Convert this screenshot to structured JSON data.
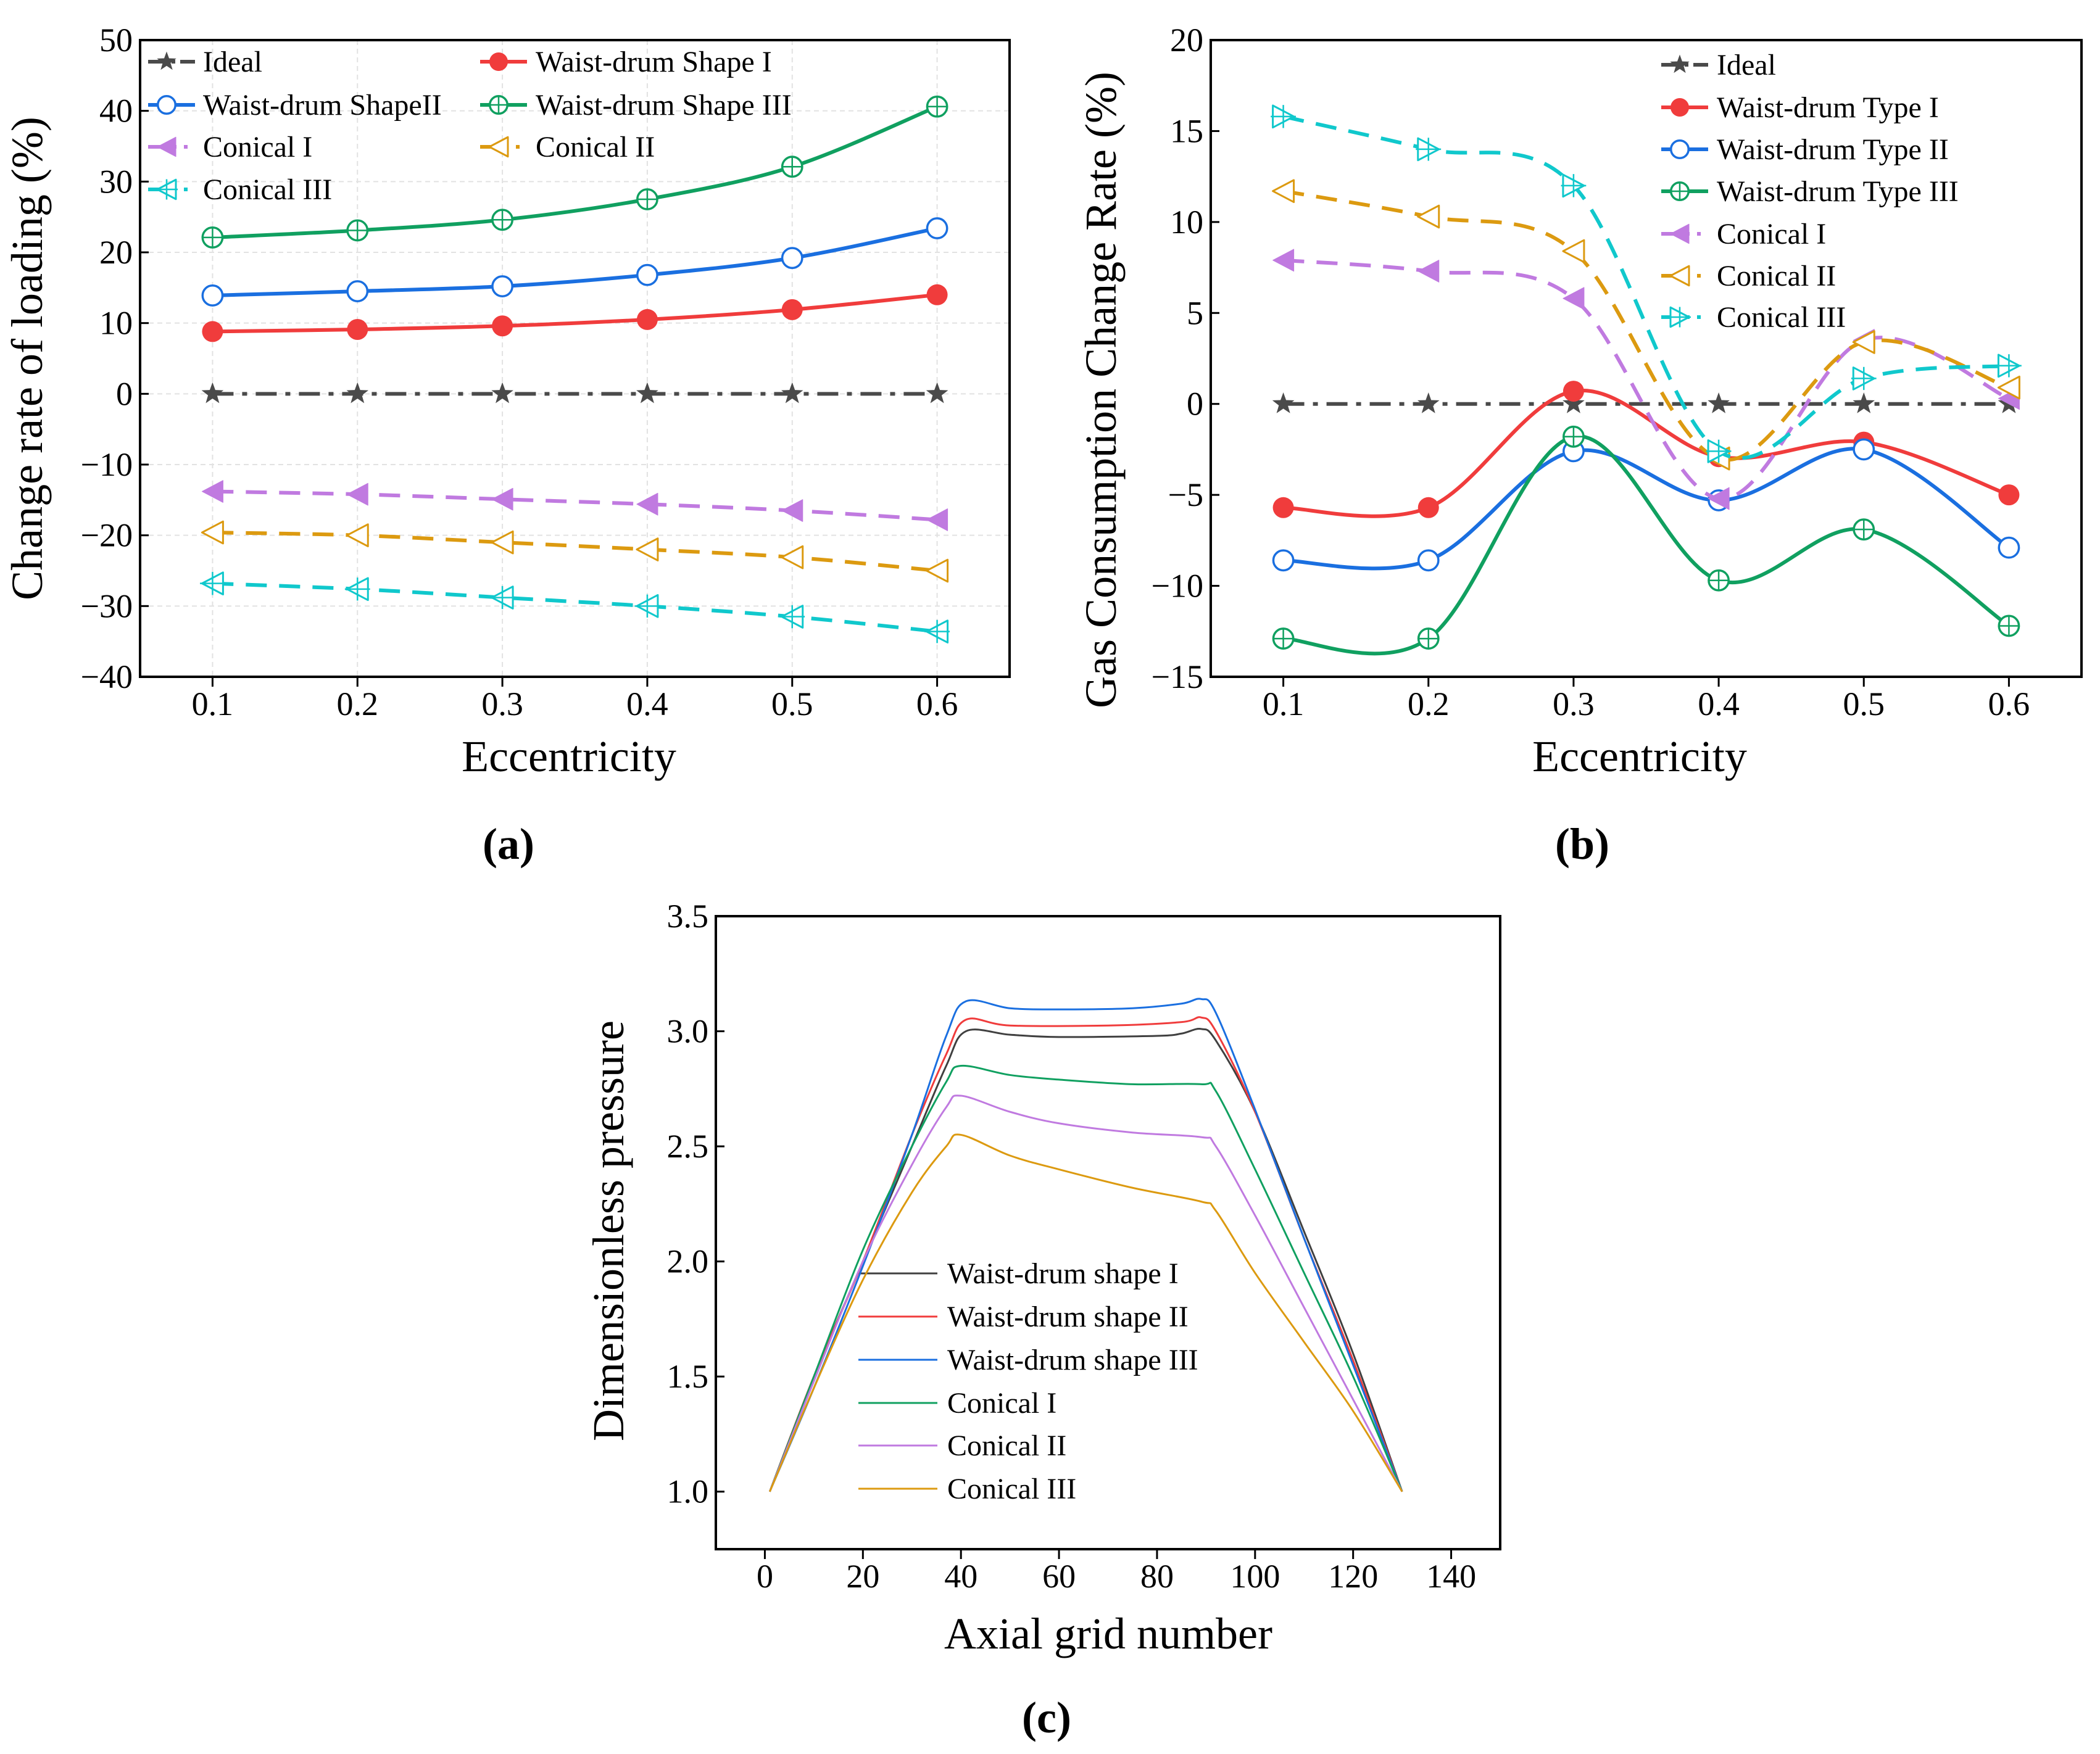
{
  "colors": {
    "ideal": "#4a4a4a",
    "wd1": "#f03c3c",
    "wd2": "#1a6fe0",
    "wd3": "#10a060",
    "c1": "#c07ae0",
    "c2": "#dc9a10",
    "c3": "#10c8cc",
    "c_wd1": "#404040",
    "c_wd2": "#f03c3c",
    "c_wd3": "#1a6fe0",
    "c_c1": "#10a060",
    "c_c2": "#c07ae0",
    "c_c3": "#dc9a10"
  },
  "chart_data": [
    {
      "id": "a",
      "type": "line",
      "caption": "(a)",
      "xlabel": "Eccentricity",
      "ylabel": "Change rate of loading (%)",
      "xlim": [
        0.05,
        0.65
      ],
      "ylim": [
        -40,
        50
      ],
      "xticks": [
        "0.1",
        "0.2",
        "0.3",
        "0.4",
        "0.5",
        "0.6"
      ],
      "yticks": [
        "−40",
        "−30",
        "−20",
        "−10",
        "0",
        "10",
        "20",
        "30",
        "40",
        "50"
      ],
      "grid": true,
      "legend_position": "top-left (two columns)",
      "x": [
        0.1,
        0.2,
        0.3,
        0.4,
        0.5,
        0.6
      ],
      "series": [
        {
          "name": "Ideal",
          "color_key": "ideal",
          "marker": "star",
          "dash": "dashdot",
          "values": [
            0,
            0,
            0,
            0,
            0,
            0
          ]
        },
        {
          "name": "Waist-drum Shape I",
          "color_key": "wd1",
          "marker": "circle-filled",
          "dash": "solid",
          "values": [
            8.8,
            9.1,
            9.6,
            10.5,
            11.9,
            14.0
          ]
        },
        {
          "name": "Waist-drum ShapeII",
          "color_key": "wd2",
          "marker": "circle-open",
          "dash": "solid",
          "values": [
            13.9,
            14.5,
            15.2,
            16.8,
            19.2,
            23.4
          ]
        },
        {
          "name": "Waist-drum Shape III",
          "color_key": "wd3",
          "marker": "circle-plus",
          "dash": "solid",
          "values": [
            22.1,
            23.1,
            24.6,
            27.5,
            32.1,
            40.6
          ]
        },
        {
          "name": "Conical I",
          "color_key": "c1",
          "marker": "tri-left-filled",
          "dash": "dashed",
          "values": [
            -13.8,
            -14.2,
            -14.9,
            -15.6,
            -16.5,
            -17.8
          ]
        },
        {
          "name": "Conical II",
          "color_key": "c2",
          "marker": "tri-left-open",
          "dash": "dashed",
          "values": [
            -19.6,
            -20.0,
            -21.0,
            -22.0,
            -23.1,
            -25.0
          ]
        },
        {
          "name": "Conical III",
          "color_key": "c3",
          "marker": "tri-left-plus",
          "dash": "dashed",
          "values": [
            -26.8,
            -27.6,
            -28.8,
            -30.0,
            -31.5,
            -33.6
          ]
        }
      ]
    },
    {
      "id": "b",
      "type": "line",
      "caption": "(b)",
      "xlabel": "Eccentricity",
      "ylabel": "Gas Consumption Change Rate (%)",
      "xlim": [
        0.05,
        0.65
      ],
      "ylim": [
        -15,
        20
      ],
      "xticks": [
        "0.1",
        "0.2",
        "0.3",
        "0.4",
        "0.5",
        "0.6"
      ],
      "yticks": [
        "−15",
        "−10",
        "−5",
        "0",
        "5",
        "10",
        "15",
        "20"
      ],
      "grid": false,
      "legend_position": "top-right",
      "x": [
        0.1,
        0.2,
        0.3,
        0.4,
        0.5,
        0.6
      ],
      "series": [
        {
          "name": "Ideal",
          "color_key": "ideal",
          "marker": "star",
          "dash": "dashdot",
          "values": [
            0,
            0,
            0,
            0,
            0,
            0
          ]
        },
        {
          "name": "Waist-drum Type I",
          "color_key": "wd1",
          "marker": "circle-filled",
          "dash": "solid",
          "values": [
            -5.7,
            -5.7,
            0.7,
            -2.9,
            -2.1,
            -5.0
          ]
        },
        {
          "name": "Waist-drum Type II",
          "color_key": "wd2",
          "marker": "circle-open",
          "dash": "solid",
          "values": [
            -8.6,
            -8.6,
            -2.6,
            -5.3,
            -2.5,
            -7.9
          ]
        },
        {
          "name": "Waist-drum Type III",
          "color_key": "wd3",
          "marker": "circle-plus",
          "dash": "solid",
          "values": [
            -12.9,
            -12.9,
            -1.8,
            -9.7,
            -6.9,
            -12.2
          ]
        },
        {
          "name": "Conical I",
          "color_key": "c1",
          "marker": "tri-left-filled",
          "dash": "dashed",
          "values": [
            7.9,
            7.3,
            5.8,
            -5.2,
            3.5,
            0.3
          ]
        },
        {
          "name": "Conical II",
          "color_key": "c2",
          "marker": "tri-left-open",
          "dash": "dashed",
          "values": [
            11.7,
            10.3,
            8.4,
            -3.0,
            3.4,
            0.9
          ]
        },
        {
          "name": "Conical III",
          "color_key": "c3",
          "marker": "tri-right-plus",
          "dash": "dashed",
          "values": [
            15.8,
            14.0,
            12.0,
            -2.6,
            1.4,
            2.1
          ]
        }
      ]
    },
    {
      "id": "c",
      "type": "line",
      "caption": "(c)",
      "xlabel": "Axial grid number",
      "ylabel": "Dimensionless pressure",
      "xlim": [
        -10,
        150
      ],
      "ylim": [
        0.75,
        3.5
      ],
      "xticks": [
        "0",
        "20",
        "40",
        "60",
        "80",
        "100",
        "120",
        "140"
      ],
      "yticks": [
        "1.0",
        "1.5",
        "2.0",
        "2.5",
        "3.0",
        "3.5"
      ],
      "grid": false,
      "legend_position": "lower-center",
      "series": [
        {
          "name": "Waist-drum shape I",
          "color_key": "c_wd1",
          "points": [
            [
              1,
              1.0
            ],
            [
              10,
              1.5
            ],
            [
              20,
              2.0
            ],
            [
              30,
              2.5
            ],
            [
              37,
              2.85
            ],
            [
              41,
              3.0
            ],
            [
              50,
              2.985
            ],
            [
              60,
              2.975
            ],
            [
              80,
              2.98
            ],
            [
              85,
              2.99
            ],
            [
              89,
              3.01
            ],
            [
              92,
              2.96
            ],
            [
              100,
              2.65
            ],
            [
              110,
              2.13
            ],
            [
              120,
              1.6
            ],
            [
              130,
              1.0
            ]
          ]
        },
        {
          "name": "Waist-drum shape II",
          "color_key": "c_wd2",
          "points": [
            [
              1,
              1.0
            ],
            [
              10,
              1.5
            ],
            [
              20,
              2.0
            ],
            [
              30,
              2.55
            ],
            [
              37,
              2.9
            ],
            [
              41,
              3.05
            ],
            [
              50,
              3.025
            ],
            [
              70,
              3.025
            ],
            [
              85,
              3.04
            ],
            [
              89,
              3.06
            ],
            [
              92,
              3.0
            ],
            [
              100,
              2.65
            ],
            [
              110,
              2.1
            ],
            [
              120,
              1.57
            ],
            [
              130,
              1.0
            ]
          ]
        },
        {
          "name": "Waist-drum shape III",
          "color_key": "c_wd3",
          "points": [
            [
              1,
              1.0
            ],
            [
              10,
              1.45
            ],
            [
              20,
              1.98
            ],
            [
              30,
              2.55
            ],
            [
              37,
              2.98
            ],
            [
              41,
              3.13
            ],
            [
              50,
              3.1
            ],
            [
              60,
              3.095
            ],
            [
              75,
              3.1
            ],
            [
              85,
              3.12
            ],
            [
              89,
              3.14
            ],
            [
              92,
              3.08
            ],
            [
              100,
              2.66
            ],
            [
              110,
              2.1
            ],
            [
              120,
              1.55
            ],
            [
              130,
              1.0
            ]
          ]
        },
        {
          "name": "Conical I",
          "color_key": "c_c1",
          "points": [
            [
              1,
              1.0
            ],
            [
              10,
              1.5
            ],
            [
              20,
              2.05
            ],
            [
              30,
              2.5
            ],
            [
              37,
              2.78
            ],
            [
              40,
              2.85
            ],
            [
              50,
              2.81
            ],
            [
              60,
              2.79
            ],
            [
              75,
              2.77
            ],
            [
              89,
              2.77
            ],
            [
              92,
              2.74
            ],
            [
              100,
              2.4
            ],
            [
              110,
              1.95
            ],
            [
              120,
              1.5
            ],
            [
              130,
              1.0
            ]
          ]
        },
        {
          "name": "Conical II",
          "color_key": "c_c2",
          "points": [
            [
              1,
              1.0
            ],
            [
              10,
              1.48
            ],
            [
              20,
              2.0
            ],
            [
              30,
              2.42
            ],
            [
              37,
              2.67
            ],
            [
              40,
              2.72
            ],
            [
              50,
              2.65
            ],
            [
              60,
              2.6
            ],
            [
              75,
              2.56
            ],
            [
              89,
              2.54
            ],
            [
              92,
              2.5
            ],
            [
              100,
              2.2
            ],
            [
              110,
              1.8
            ],
            [
              120,
              1.4
            ],
            [
              130,
              1.0
            ]
          ]
        },
        {
          "name": "Conical III",
          "color_key": "c_c3",
          "points": [
            [
              1,
              1.0
            ],
            [
              10,
              1.45
            ],
            [
              20,
              1.92
            ],
            [
              30,
              2.3
            ],
            [
              37,
              2.5
            ],
            [
              40,
              2.55
            ],
            [
              50,
              2.46
            ],
            [
              60,
              2.4
            ],
            [
              75,
              2.32
            ],
            [
              89,
              2.26
            ],
            [
              92,
              2.22
            ],
            [
              100,
              1.95
            ],
            [
              110,
              1.65
            ],
            [
              120,
              1.35
            ],
            [
              130,
              1.0
            ]
          ]
        }
      ]
    }
  ]
}
